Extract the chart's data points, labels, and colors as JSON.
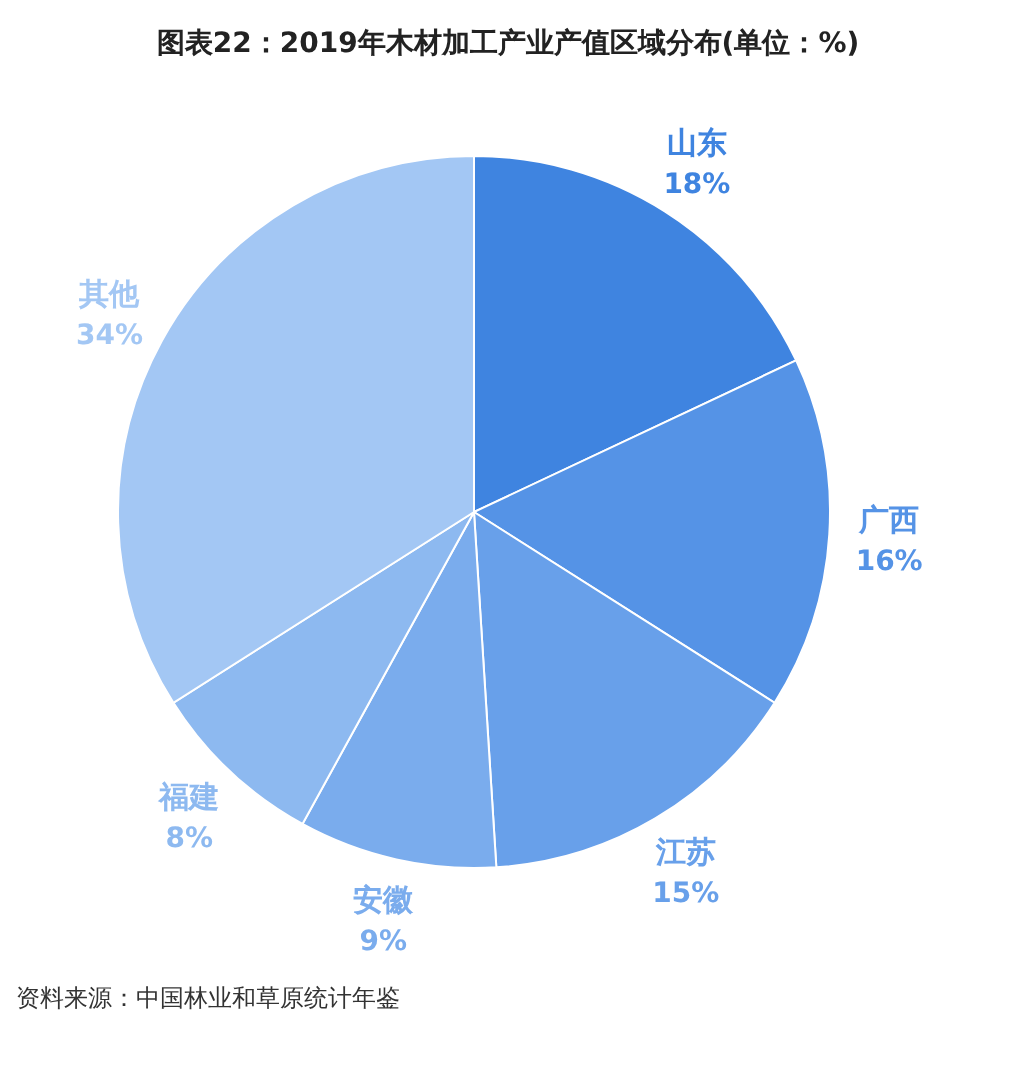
{
  "chart_data": {
    "type": "pie",
    "title": "图表22：2019年木材加工产业产值区域分布(单位：%)",
    "categories": [
      "山东",
      "广西",
      "江苏",
      "安徽",
      "福建",
      "其他"
    ],
    "values": [
      18,
      16,
      15,
      9,
      8,
      34
    ],
    "value_labels": [
      "18%",
      "16%",
      "15%",
      "9%",
      "8%",
      "34%"
    ],
    "colors": [
      "#3f84e0",
      "#5593e6",
      "#68a0ea",
      "#7aaced",
      "#8db9f0",
      "#a3c7f4"
    ],
    "annotations": [
      "资料来源：中国林业和草原统计年鉴"
    ]
  }
}
